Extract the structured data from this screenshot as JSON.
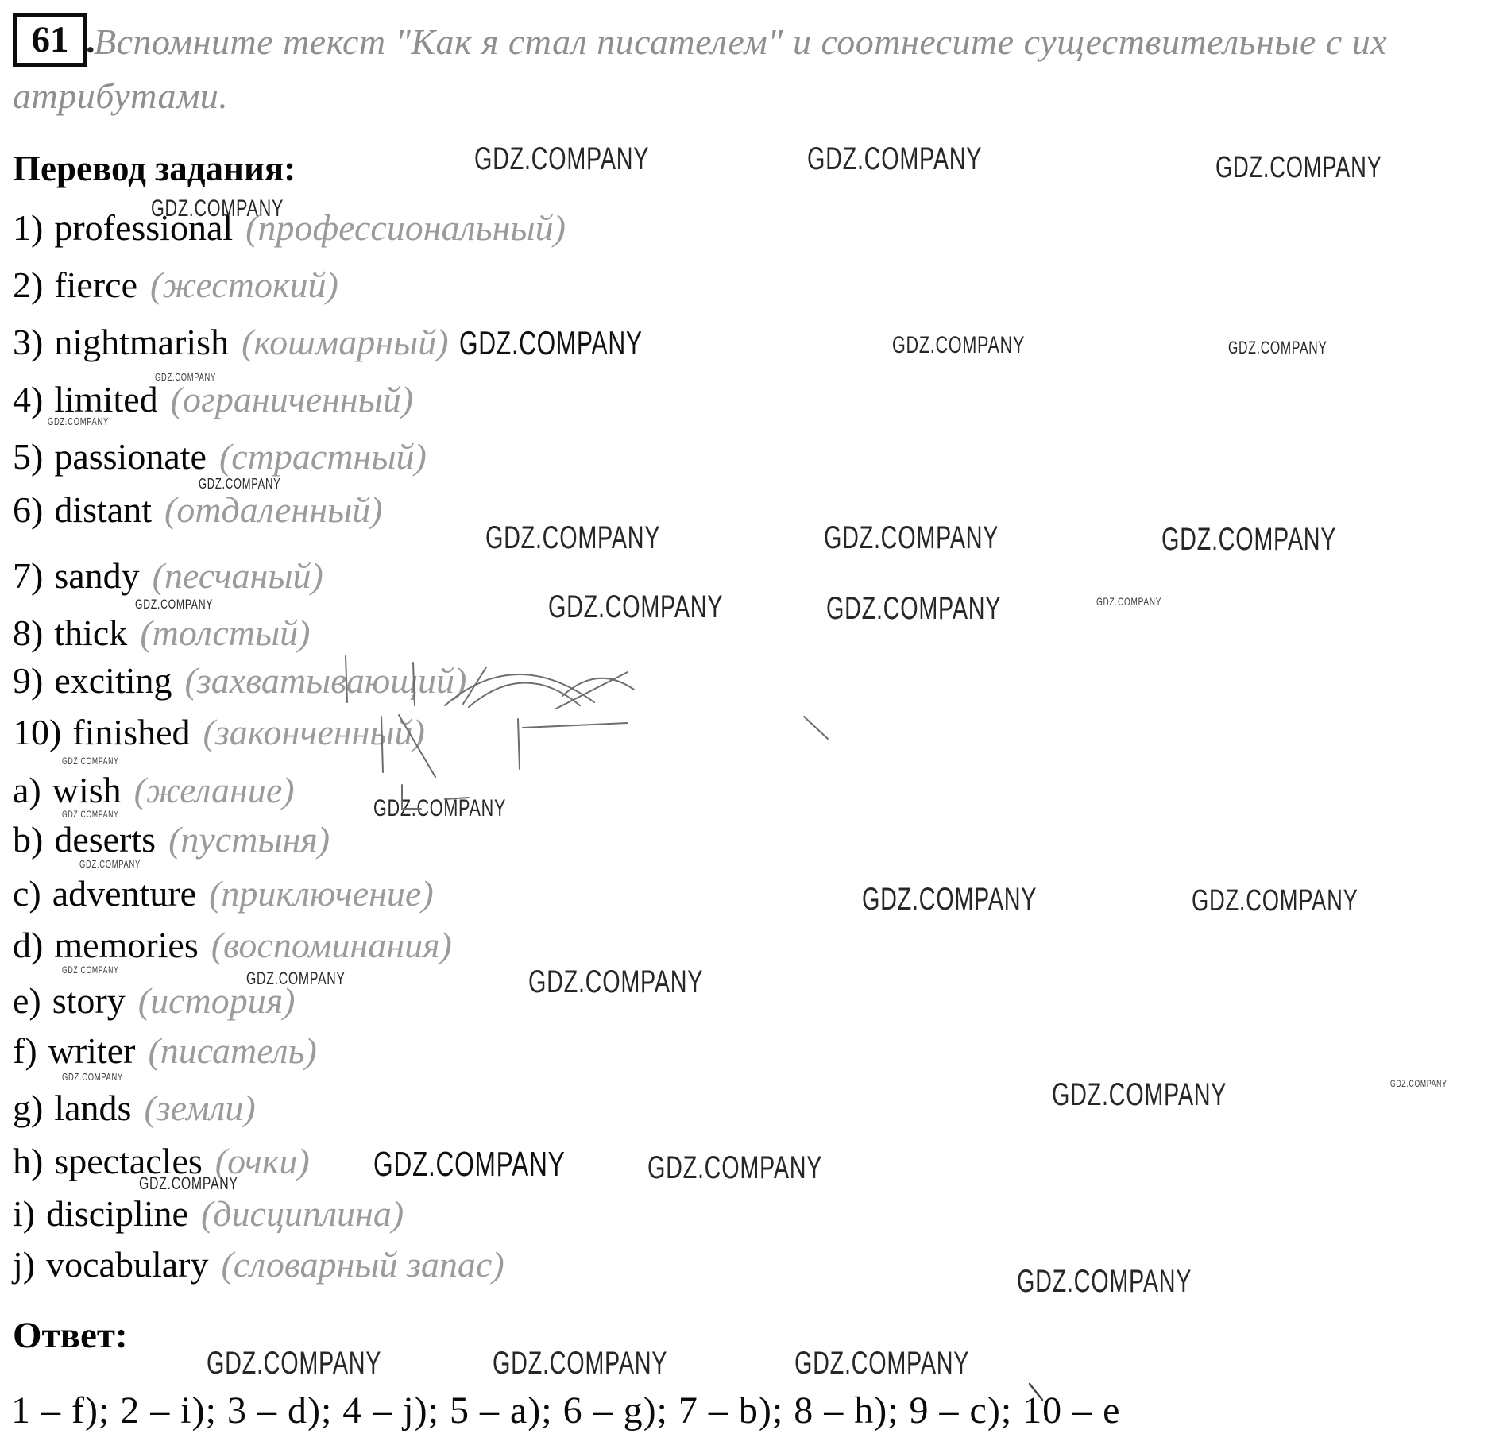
{
  "header": {
    "exercise_number": "61",
    "exercise_punctuation": ".",
    "instruction_line1": "Вспомните текст \"Как я стал писателем\" и соотнесите существительные с их",
    "instruction_line2": "атрибутами."
  },
  "translation_section": {
    "heading": "Перевод задания:",
    "adjectives": [
      {
        "prefix": "1)",
        "word": "professional",
        "translation": "(профессиональный)"
      },
      {
        "prefix": "2)",
        "word": "fierce",
        "translation": "(жестокий)"
      },
      {
        "prefix": "3)",
        "word": "nightmarish",
        "translation": "(кошмарный)"
      },
      {
        "prefix": "4)",
        "word": "limited",
        "translation": "(ограниченный)"
      },
      {
        "prefix": "5)",
        "word": "passionate",
        "translation": "(страстный)"
      },
      {
        "prefix": "6)",
        "word": "distant",
        "translation": "(отдаленный)"
      },
      {
        "prefix": "7)",
        "word": "sandy",
        "translation": "(песчаный)"
      },
      {
        "prefix": "8)",
        "word": "thick",
        "translation": "(толстый)"
      },
      {
        "prefix": "9)",
        "word": "exciting",
        "translation": "(захватывающий)"
      },
      {
        "prefix": "10)",
        "word": "finished",
        "translation": "(законченный)"
      }
    ],
    "nouns": [
      {
        "prefix": "a)",
        "word": "wish",
        "translation": "(желание)"
      },
      {
        "prefix": "b)",
        "word": "deserts",
        "translation": "(пустыня)"
      },
      {
        "prefix": "c)",
        "word": "adventure",
        "translation": "(приключение)"
      },
      {
        "prefix": "d)",
        "word": "memories",
        "translation": "(воспоминания)"
      },
      {
        "prefix": "e)",
        "word": "story",
        "translation": "(история)"
      },
      {
        "prefix": "f)",
        "word": "writer",
        "translation": "(писатель)"
      },
      {
        "prefix": "g)",
        "word": "lands",
        "translation": "(земли)"
      },
      {
        "prefix": "h)",
        "word": "spectacles",
        "translation": "(очки)"
      },
      {
        "prefix": "i)",
        "word": "discipline",
        "translation": "(дисциплина)"
      },
      {
        "prefix": "j)",
        "word": "vocabulary",
        "translation": "(словарный запас)"
      }
    ]
  },
  "answer_section": {
    "heading": "Ответ:",
    "answer": "1 – f); 2 – i); 3 – d); 4 – j); 5 – a); 6 – g); 7 – b); 8 – h); 9 – c); 10 – e"
  },
  "watermark": {
    "label": "GDZ.COMPANY"
  }
}
